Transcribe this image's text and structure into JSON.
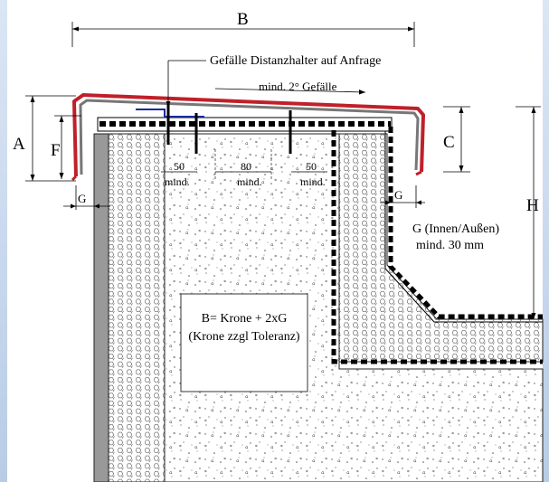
{
  "labels": {
    "b": "B",
    "a": "A",
    "f": "F",
    "c": "C",
    "h": "H",
    "g_left": "G",
    "g_right": "G",
    "distanzhalter": "Gefälle Distanzhalter auf Anfrage",
    "gefaelle": "mind. 2° Gefälle",
    "spacing_left_value": "50",
    "spacing_mid_value": "80",
    "spacing_right_value": "50",
    "spacing_left_unit": "mind.",
    "spacing_mid_unit": "mind.",
    "spacing_right_unit": "mind.",
    "g_note_line1": "G (Innen/Außen)",
    "g_note_line2": "mind. 30 mm",
    "formula_line1": "B= Krone + 2xG",
    "formula_line2": "(Krone zzgl Toleranz)"
  },
  "colors": {
    "cap_red": "#c0202a",
    "bracket_blue": "#1a2a9c",
    "background_blue": "#c9d9ef"
  }
}
